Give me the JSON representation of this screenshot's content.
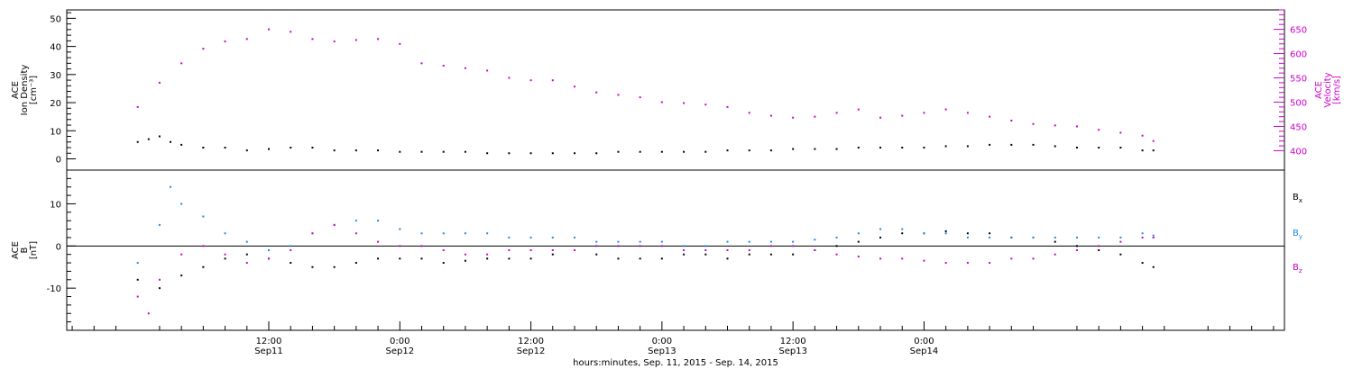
{
  "chart_data": [
    {
      "type": "scatter",
      "panel": "top",
      "ylabel_left_lines": [
        "ACE",
        "Ion Density",
        "[cm⁻³]"
      ],
      "ylabel_right_lines": [
        "ACE",
        "Velocity",
        "[km/s]"
      ],
      "ylim_left": [
        -4,
        53
      ],
      "yticks_left": [
        0,
        10,
        20,
        30,
        40,
        50
      ],
      "ylim_right": [
        360,
        690
      ],
      "yticks_right": [
        400,
        450,
        500,
        550,
        600,
        650
      ],
      "series": [
        {
          "axis": "right",
          "color": "#cc00cc",
          "points": [
            [
              0,
              490
            ],
            [
              2,
              540
            ],
            [
              4,
              580
            ],
            [
              6,
              610
            ],
            [
              8,
              625
            ],
            [
              10,
              630
            ],
            [
              12,
              650
            ],
            [
              14,
              645
            ],
            [
              16,
              630
            ],
            [
              18,
              625
            ],
            [
              20,
              628
            ],
            [
              22,
              630
            ],
            [
              24,
              620
            ],
            [
              26,
              580
            ],
            [
              28,
              575
            ],
            [
              30,
              570
            ],
            [
              32,
              565
            ],
            [
              34,
              550
            ],
            [
              36,
              545
            ],
            [
              38,
              545
            ],
            [
              40,
              532
            ],
            [
              42,
              520
            ],
            [
              44,
              515
            ],
            [
              46,
              510
            ],
            [
              48,
              500
            ],
            [
              50,
              498
            ],
            [
              52,
              495
            ],
            [
              54,
              490
            ],
            [
              56,
              478
            ],
            [
              58,
              472
            ],
            [
              60,
              468
            ],
            [
              62,
              470
            ],
            [
              64,
              478
            ],
            [
              66,
              485
            ],
            [
              68,
              468
            ],
            [
              70,
              472
            ],
            [
              72,
              478
            ],
            [
              74,
              485
            ],
            [
              76,
              478
            ],
            [
              78,
              470
            ],
            [
              80,
              462
            ],
            [
              82,
              455
            ],
            [
              84,
              452
            ],
            [
              86,
              450
            ],
            [
              88,
              443
            ],
            [
              90,
              437
            ],
            [
              92,
              431
            ],
            [
              93,
              420
            ]
          ]
        },
        {
          "axis": "left",
          "color": "#000000",
          "points": [
            [
              0,
              6
            ],
            [
              1,
              7
            ],
            [
              2,
              8
            ],
            [
              3,
              6
            ],
            [
              4,
              5
            ],
            [
              6,
              4
            ],
            [
              8,
              4
            ],
            [
              10,
              3
            ],
            [
              12,
              3.5
            ],
            [
              14,
              4
            ],
            [
              16,
              4
            ],
            [
              18,
              3
            ],
            [
              20,
              3
            ],
            [
              22,
              3
            ],
            [
              24,
              2.5
            ],
            [
              26,
              2.5
            ],
            [
              28,
              2.5
            ],
            [
              30,
              2.5
            ],
            [
              32,
              2
            ],
            [
              34,
              2
            ],
            [
              36,
              2
            ],
            [
              38,
              2
            ],
            [
              40,
              2
            ],
            [
              42,
              2
            ],
            [
              44,
              2.5
            ],
            [
              46,
              2.5
            ],
            [
              48,
              2.5
            ],
            [
              50,
              2.5
            ],
            [
              52,
              2.5
            ],
            [
              54,
              3
            ],
            [
              56,
              3
            ],
            [
              58,
              3
            ],
            [
              60,
              3.5
            ],
            [
              62,
              3.5
            ],
            [
              64,
              3.5
            ],
            [
              66,
              4
            ],
            [
              68,
              4
            ],
            [
              70,
              4
            ],
            [
              72,
              4
            ],
            [
              74,
              4.5
            ],
            [
              76,
              4.5
            ],
            [
              78,
              5
            ],
            [
              80,
              5
            ],
            [
              82,
              5
            ],
            [
              84,
              4.5
            ],
            [
              86,
              4
            ],
            [
              88,
              4
            ],
            [
              90,
              4
            ],
            [
              92,
              3
            ],
            [
              93,
              3
            ]
          ]
        }
      ]
    },
    {
      "type": "scatter",
      "panel": "bottom",
      "ylabel_lines": [
        "ACE",
        "B",
        "[nT]"
      ],
      "ylim": [
        -20,
        18
      ],
      "yticks": [
        -10,
        0,
        10
      ],
      "legend": [
        {
          "label": "B",
          "sub": "x",
          "color": "#000000"
        },
        {
          "label": "B",
          "sub": "y",
          "color": "#1e88e5"
        },
        {
          "label": "B",
          "sub": "z",
          "color": "#cc00cc"
        }
      ],
      "legend_placement": "right",
      "series": [
        {
          "name": "Bx",
          "color": "#000000",
          "points": [
            [
              0,
              -8
            ],
            [
              2,
              -10
            ],
            [
              4,
              -7
            ],
            [
              6,
              -5
            ],
            [
              8,
              -3
            ],
            [
              10,
              -2
            ],
            [
              12,
              -3
            ],
            [
              14,
              -4
            ],
            [
              16,
              -5
            ],
            [
              18,
              -5
            ],
            [
              20,
              -4
            ],
            [
              22,
              -3
            ],
            [
              24,
              -3
            ],
            [
              26,
              -3
            ],
            [
              28,
              -4
            ],
            [
              30,
              -3.5
            ],
            [
              32,
              -3
            ],
            [
              34,
              -3
            ],
            [
              36,
              -3
            ],
            [
              38,
              -2
            ],
            [
              40,
              -1
            ],
            [
              42,
              -2
            ],
            [
              44,
              -3
            ],
            [
              46,
              -3
            ],
            [
              48,
              -3
            ],
            [
              50,
              -2
            ],
            [
              52,
              -2
            ],
            [
              54,
              -3
            ],
            [
              56,
              -2
            ],
            [
              58,
              -2
            ],
            [
              60,
              -2
            ],
            [
              62,
              -1
            ],
            [
              64,
              0
            ],
            [
              66,
              1
            ],
            [
              68,
              2
            ],
            [
              70,
              3
            ],
            [
              72,
              3
            ],
            [
              74,
              3.5
            ],
            [
              76,
              3
            ],
            [
              78,
              3
            ],
            [
              80,
              2
            ],
            [
              82,
              2
            ],
            [
              84,
              1
            ],
            [
              86,
              0
            ],
            [
              88,
              -1
            ],
            [
              90,
              -2
            ],
            [
              92,
              -4
            ],
            [
              93,
              -5
            ]
          ]
        },
        {
          "name": "By",
          "color": "#1e88e5",
          "points": [
            [
              0,
              -4
            ],
            [
              2,
              5
            ],
            [
              3,
              14
            ],
            [
              4,
              10
            ],
            [
              6,
              7
            ],
            [
              8,
              3
            ],
            [
              10,
              1
            ],
            [
              12,
              -1
            ],
            [
              14,
              0
            ],
            [
              16,
              3
            ],
            [
              18,
              5
            ],
            [
              20,
              6
            ],
            [
              22,
              6
            ],
            [
              24,
              4
            ],
            [
              26,
              3
            ],
            [
              28,
              3
            ],
            [
              30,
              3
            ],
            [
              32,
              3
            ],
            [
              34,
              2
            ],
            [
              36,
              2
            ],
            [
              38,
              2
            ],
            [
              40,
              2
            ],
            [
              42,
              1
            ],
            [
              44,
              1
            ],
            [
              46,
              1
            ],
            [
              48,
              1
            ],
            [
              50,
              0
            ],
            [
              52,
              0
            ],
            [
              54,
              1
            ],
            [
              56,
              1
            ],
            [
              58,
              1
            ],
            [
              60,
              1
            ],
            [
              62,
              1.5
            ],
            [
              64,
              2
            ],
            [
              66,
              3
            ],
            [
              68,
              4
            ],
            [
              70,
              4
            ],
            [
              72,
              3
            ],
            [
              74,
              3
            ],
            [
              76,
              2
            ],
            [
              78,
              2
            ],
            [
              80,
              2
            ],
            [
              82,
              2
            ],
            [
              84,
              2
            ],
            [
              86,
              2
            ],
            [
              88,
              2
            ],
            [
              90,
              2
            ],
            [
              92,
              3
            ],
            [
              93,
              2.5
            ]
          ]
        },
        {
          "name": "Bz",
          "color": "#cc00cc",
          "points": [
            [
              0,
              -12
            ],
            [
              1,
              -16
            ],
            [
              2,
              -8
            ],
            [
              4,
              -2
            ],
            [
              6,
              0
            ],
            [
              8,
              -2
            ],
            [
              10,
              -4
            ],
            [
              12,
              -3
            ],
            [
              14,
              -1
            ],
            [
              16,
              3
            ],
            [
              18,
              5
            ],
            [
              20,
              3
            ],
            [
              22,
              1
            ],
            [
              24,
              0
            ],
            [
              26,
              0
            ],
            [
              28,
              -1
            ],
            [
              30,
              -2
            ],
            [
              32,
              -2
            ],
            [
              34,
              -1
            ],
            [
              36,
              -1
            ],
            [
              38,
              -1
            ],
            [
              40,
              -1
            ],
            [
              42,
              0
            ],
            [
              44,
              0
            ],
            [
              46,
              0
            ],
            [
              48,
              0
            ],
            [
              50,
              -1
            ],
            [
              52,
              -1
            ],
            [
              54,
              -1
            ],
            [
              56,
              -1
            ],
            [
              58,
              0
            ],
            [
              60,
              0
            ],
            [
              62,
              -1
            ],
            [
              64,
              -2
            ],
            [
              66,
              -2.5
            ],
            [
              68,
              -3
            ],
            [
              70,
              -3
            ],
            [
              72,
              -3.5
            ],
            [
              74,
              -4
            ],
            [
              76,
              -4
            ],
            [
              78,
              -4
            ],
            [
              80,
              -3
            ],
            [
              82,
              -3
            ],
            [
              84,
              -2
            ],
            [
              86,
              -1
            ],
            [
              88,
              0
            ],
            [
              90,
              1
            ],
            [
              92,
              2
            ],
            [
              93,
              2
            ]
          ]
        }
      ]
    }
  ],
  "x_axis": {
    "xlim_hours": [
      -6.5,
      105
    ],
    "ticks": [
      {
        "hour": 12,
        "time": "12:00",
        "date": "Sep11"
      },
      {
        "hour": 24,
        "time": "0:00",
        "date": "Sep12"
      },
      {
        "hour": 36,
        "time": "12:00",
        "date": "Sep12"
      },
      {
        "hour": 48,
        "time": "0:00",
        "date": "Sep13"
      },
      {
        "hour": 60,
        "time": "12:00",
        "date": "Sep13"
      },
      {
        "hour": 72,
        "time": "0:00",
        "date": "Sep14"
      }
    ],
    "xlabel": "hours:minutes, Sep. 11, 2015 - Sep. 14, 2015"
  }
}
